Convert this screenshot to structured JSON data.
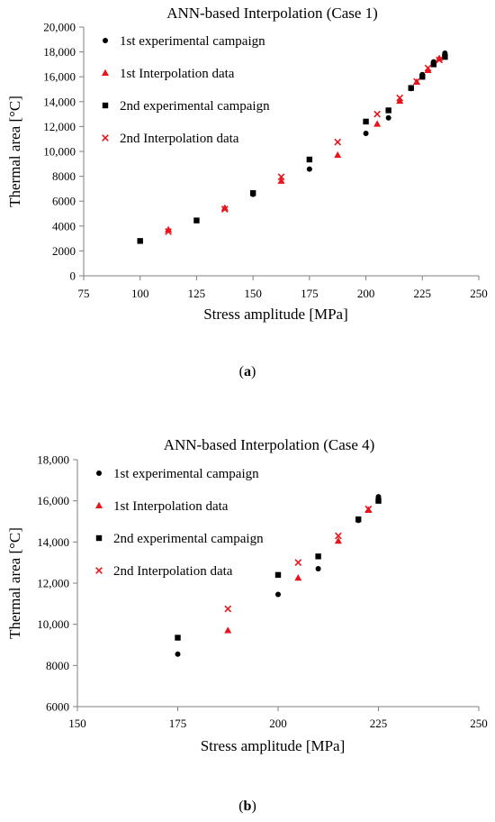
{
  "figure": {
    "label_a_open": "(",
    "label_a_letter": "a",
    "label_a_close": ")",
    "label_b_open": "(",
    "label_b_letter": "b",
    "label_b_close": ")"
  },
  "colors": {
    "black": "#000000",
    "red": "#e8141c",
    "axis": "#7f7f7f",
    "grid": "#d9d9d9"
  },
  "chart_data": [
    {
      "type": "scatter",
      "title": "ANN-based Interpolation (Case 1)",
      "xlabel": "Stress amplitude [MPa]",
      "ylabel": "Thermal area [°C]",
      "xlim": [
        75,
        250
      ],
      "ylim": [
        0,
        20000
      ],
      "xticks": [
        75,
        100,
        125,
        150,
        175,
        200,
        225,
        250
      ],
      "xtick_labels": [
        "75",
        "100",
        "125",
        "150",
        "175",
        "200",
        "225",
        "250"
      ],
      "yticks": [
        0,
        2000,
        4000,
        6000,
        8000,
        10000,
        12000,
        14000,
        16000,
        18000,
        20000
      ],
      "ytick_labels": [
        "0",
        "2000",
        "4000",
        "6000",
        "8000",
        "10,000",
        "12,000",
        "14,000",
        "16,000",
        "18,000",
        "20,000"
      ],
      "grid": false,
      "legend_position": "top-left",
      "series": [
        {
          "name": "1st experimental campaign",
          "marker": "circle",
          "color": "#000000",
          "points": [
            [
              150,
              6550
            ],
            [
              175,
              8580
            ],
            [
              200,
              11450
            ],
            [
              210,
              12700
            ],
            [
              220,
              15050
            ],
            [
              225,
              16180
            ],
            [
              230,
              17200
            ],
            [
              235,
              17900
            ]
          ]
        },
        {
          "name": "1st Interpolation data",
          "marker": "triangle",
          "color": "#e8141c",
          "points": [
            [
              112.5,
              3700
            ],
            [
              137.5,
              5450
            ],
            [
              162.5,
              7620
            ],
            [
              187.5,
              9700
            ],
            [
              205,
              12200
            ],
            [
              215,
              14050
            ],
            [
              222.5,
              15580
            ],
            [
              227.5,
              16520
            ],
            [
              232.5,
              17480
            ]
          ]
        },
        {
          "name": "2nd experimental  campaign",
          "marker": "square",
          "color": "#000000",
          "points": [
            [
              100,
              2800
            ],
            [
              125,
              4450
            ],
            [
              150,
              6650
            ],
            [
              175,
              9350
            ],
            [
              200,
              12400
            ],
            [
              210,
              13300
            ],
            [
              220,
              15100
            ],
            [
              225,
              16000
            ],
            [
              230,
              17000
            ],
            [
              235,
              17600
            ]
          ]
        },
        {
          "name": "2nd Interpolation data",
          "marker": "x",
          "color": "#e8141c",
          "points": [
            [
              112.5,
              3550
            ],
            [
              137.5,
              5350
            ],
            [
              162.5,
              7950
            ],
            [
              187.5,
              10750
            ],
            [
              205,
              13000
            ],
            [
              215,
              14300
            ],
            [
              222.5,
              15620
            ],
            [
              227.5,
              16700
            ],
            [
              232.5,
              17350
            ]
          ]
        }
      ]
    },
    {
      "type": "scatter",
      "title": "ANN-based Interpolation (Case 4)",
      "xlabel": "Stress amplitude [MPa]",
      "ylabel": "Thermal area [°C]",
      "xlim": [
        150,
        250
      ],
      "ylim": [
        6000,
        18000
      ],
      "xticks": [
        150,
        175,
        200,
        225,
        250
      ],
      "xtick_labels": [
        "150",
        "175",
        "200",
        "225",
        "250"
      ],
      "yticks": [
        6000,
        8000,
        10000,
        12000,
        14000,
        16000,
        18000
      ],
      "ytick_labels": [
        "6000",
        "8000",
        "10,000",
        "12,000",
        "14,000",
        "16,000",
        "18,000"
      ],
      "grid": false,
      "legend_position": "top-left",
      "series": [
        {
          "name": "1st experimental campaign",
          "marker": "circle",
          "color": "#000000",
          "points": [
            [
              175,
              8550
            ],
            [
              200,
              11450
            ],
            [
              210,
              12700
            ],
            [
              220,
              15050
            ],
            [
              225,
              16200
            ]
          ]
        },
        {
          "name": "1st Interpolation data",
          "marker": "triangle",
          "color": "#e8141c",
          "points": [
            [
              187.5,
              9700
            ],
            [
              205,
              12250
            ],
            [
              215,
              14050
            ],
            [
              222.5,
              15550
            ]
          ]
        },
        {
          "name": "2nd experimental  campaign",
          "marker": "square",
          "color": "#000000",
          "points": [
            [
              175,
              9350
            ],
            [
              200,
              12400
            ],
            [
              210,
              13300
            ],
            [
              220,
              15100
            ],
            [
              225,
              16000
            ]
          ]
        },
        {
          "name": "2nd Interpolation data",
          "marker": "x",
          "color": "#e8141c",
          "points": [
            [
              187.5,
              10750
            ],
            [
              205,
              13000
            ],
            [
              215,
              14300
            ],
            [
              222.5,
              15600
            ]
          ]
        }
      ]
    }
  ]
}
